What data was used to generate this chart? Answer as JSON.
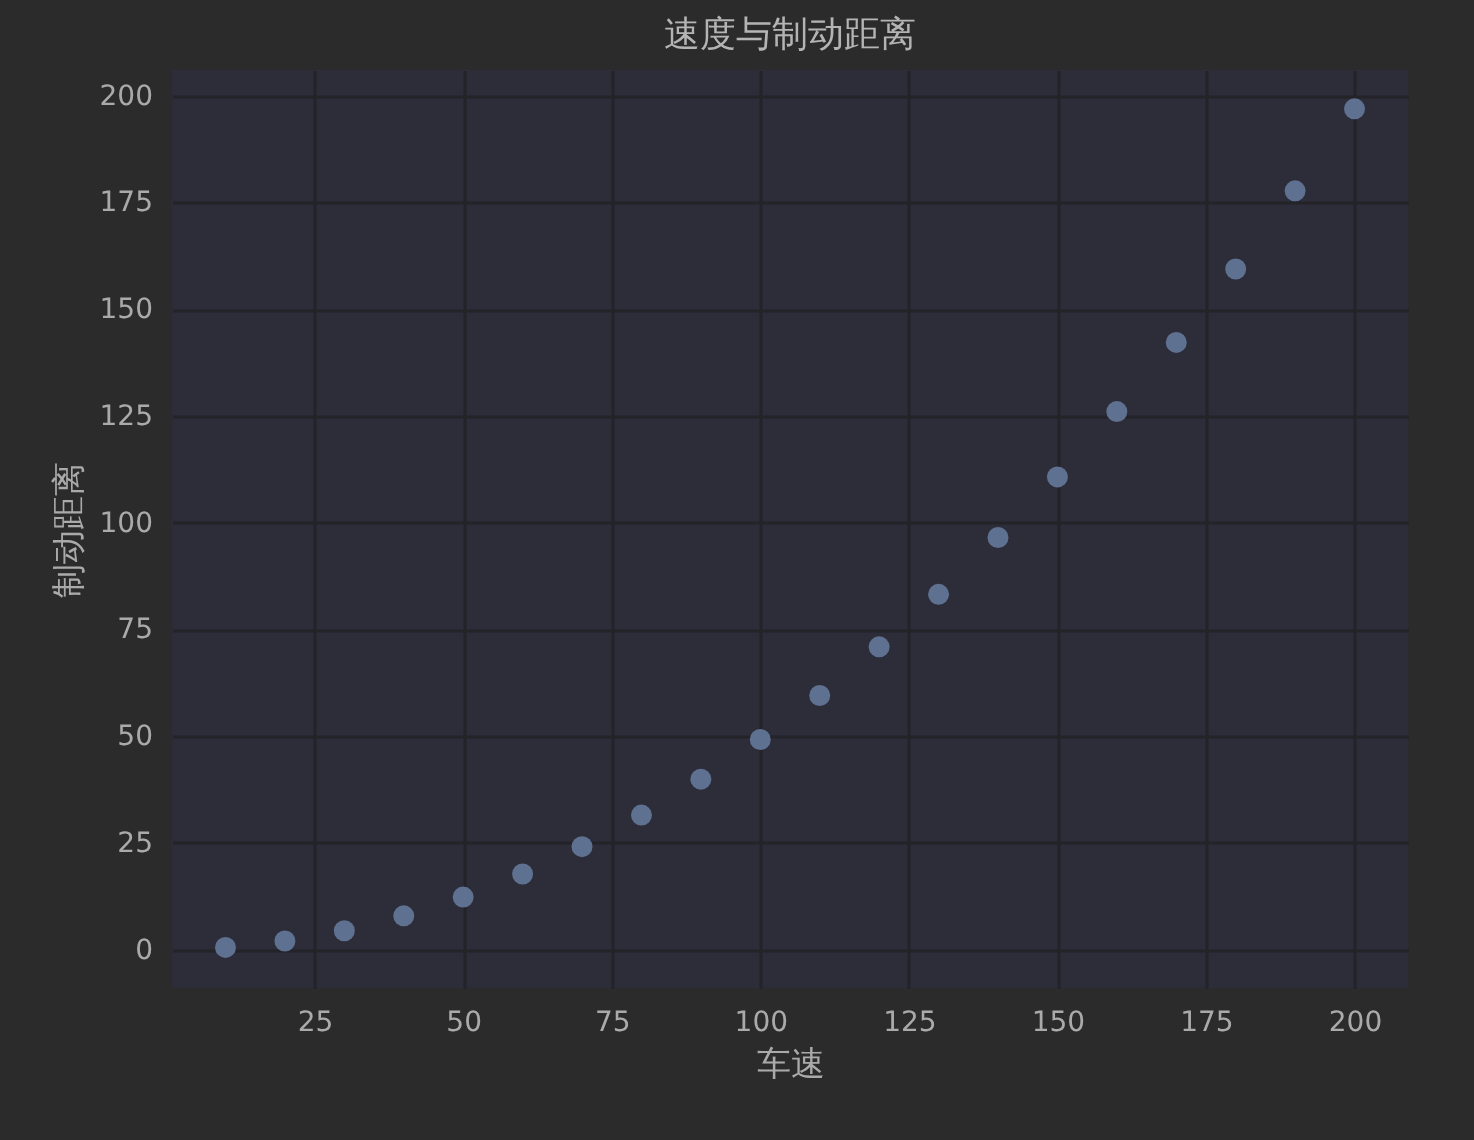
{
  "chart_data": {
    "type": "scatter",
    "title": "速度与制动距离",
    "xlabel": "车速",
    "ylabel": "制动距离",
    "x": [
      10,
      20,
      30,
      40,
      50,
      60,
      70,
      80,
      90,
      100,
      110,
      120,
      130,
      140,
      150,
      160,
      170,
      180,
      190,
      200
    ],
    "series": [
      {
        "color": "#5f7190",
        "values": [
          0.5,
          2.0,
          4.4,
          7.9,
          12.3,
          17.7,
          24.1,
          31.5,
          39.9,
          49.2,
          59.5,
          70.9,
          83.2,
          96.5,
          110.7,
          126.0,
          142.2,
          159.4,
          177.7,
          196.9
        ]
      }
    ],
    "xlim": [
      1,
      209
    ],
    "xticks": [
      25,
      50,
      75,
      100,
      125,
      150,
      175,
      200
    ],
    "ylim": [
      -9,
      206
    ],
    "yticks": [
      0,
      25,
      50,
      75,
      100,
      125,
      150,
      175,
      200
    ],
    "grid": true,
    "marker": "circle"
  }
}
